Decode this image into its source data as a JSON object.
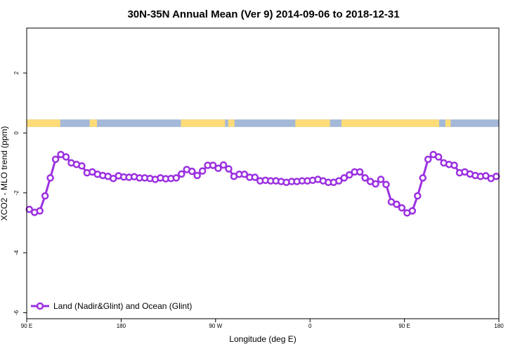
{
  "chart_data": {
    "type": "line",
    "title": "30N-35N Annual Mean (Ver 9)   2014-09-06 to 2018-12-31",
    "xlabel": "Longitude (deg E)",
    "ylabel": "XCO2 - MLO trend (ppm)",
    "xlim": [
      90,
      540
    ],
    "ylim": [
      -6.2,
      3.5
    ],
    "x_ticks": [
      {
        "value": 90,
        "label": "90 E"
      },
      {
        "value": 180,
        "label": "180"
      },
      {
        "value": 270,
        "label": "90 W"
      },
      {
        "value": 360,
        "label": "0"
      },
      {
        "value": 450,
        "label": "90 E"
      },
      {
        "value": 540,
        "label": "180"
      }
    ],
    "y_ticks": [
      {
        "value": 2,
        "label": "2"
      },
      {
        "value": 0,
        "label": "0"
      },
      {
        "value": -2,
        "label": "-2"
      },
      {
        "value": -4,
        "label": "-4"
      },
      {
        "value": -6,
        "label": "-6"
      }
    ],
    "grid": false,
    "legend_position": "bottom-left",
    "surface_strip": {
      "y_range": [
        0.2,
        0.45
      ],
      "land_color": "#fddc78",
      "ocean_color": "#a4b8d8",
      "land_segments": [
        [
          90,
          122
        ],
        [
          150,
          157
        ],
        [
          237,
          279
        ],
        [
          282,
          288
        ],
        [
          346,
          379
        ],
        [
          390,
          483
        ],
        [
          489,
          494
        ],
        [
          552,
          573
        ]
      ]
    },
    "series": [
      {
        "name": "Land (Nadir&Glint) and Ocean (Glint)",
        "color": "#9b30e0",
        "x": [
          92.5,
          97.5,
          102.5,
          107.5,
          112.5,
          117.5,
          122.5,
          127.5,
          132.5,
          137.5,
          142.5,
          147.5,
          152.5,
          157.5,
          162.5,
          167.5,
          172.5,
          177.5,
          182.5,
          187.5,
          192.5,
          197.5,
          202.5,
          207.5,
          212.5,
          217.5,
          222.5,
          227.5,
          232.5,
          237.5,
          242.5,
          247.5,
          252.5,
          257.5,
          262.5,
          267.5,
          272.5,
          277.5,
          282.5,
          287.5,
          292.5,
          297.5,
          302.5,
          307.5,
          312.5,
          317.5,
          322.5,
          327.5,
          332.5,
          337.5,
          342.5,
          347.5,
          352.5,
          357.5,
          362.5,
          367.5,
          372.5,
          377.5,
          382.5,
          387.5,
          392.5,
          397.5,
          402.5,
          407.5,
          412.5,
          417.5,
          422.5,
          427.5,
          432.5,
          437.5,
          442.5,
          447.5,
          452.5,
          457.5,
          462.5,
          467.5,
          472.5,
          477.5,
          482.5,
          487.5,
          492.5,
          497.5,
          502.5,
          507.5,
          512.5,
          517.5,
          522.5,
          527.5,
          532.5,
          537.5
        ],
        "values": [
          -2.55,
          -2.65,
          -2.6,
          -2.1,
          -1.5,
          -0.88,
          -0.72,
          -0.8,
          -1.0,
          -1.05,
          -1.1,
          -1.33,
          -1.3,
          -1.38,
          -1.42,
          -1.45,
          -1.52,
          -1.43,
          -1.47,
          -1.48,
          -1.46,
          -1.5,
          -1.5,
          -1.52,
          -1.55,
          -1.5,
          -1.53,
          -1.52,
          -1.5,
          -1.37,
          -1.22,
          -1.28,
          -1.42,
          -1.27,
          -1.08,
          -1.08,
          -1.18,
          -1.07,
          -1.2,
          -1.45,
          -1.38,
          -1.38,
          -1.48,
          -1.48,
          -1.6,
          -1.58,
          -1.6,
          -1.6,
          -1.62,
          -1.65,
          -1.62,
          -1.62,
          -1.6,
          -1.6,
          -1.58,
          -1.55,
          -1.6,
          -1.65,
          -1.65,
          -1.6,
          -1.5,
          -1.4,
          -1.3,
          -1.3,
          -1.5,
          -1.62,
          -1.7,
          -1.55,
          -1.72,
          -2.3,
          -2.38,
          -2.5,
          -2.67,
          -2.6,
          -2.1,
          -1.5,
          -0.88,
          -0.72,
          -0.8,
          -1.0,
          -1.05,
          -1.08,
          -1.33,
          -1.3,
          -1.37,
          -1.42,
          -1.45,
          -1.43,
          -1.52,
          -1.45
        ]
      }
    ]
  }
}
